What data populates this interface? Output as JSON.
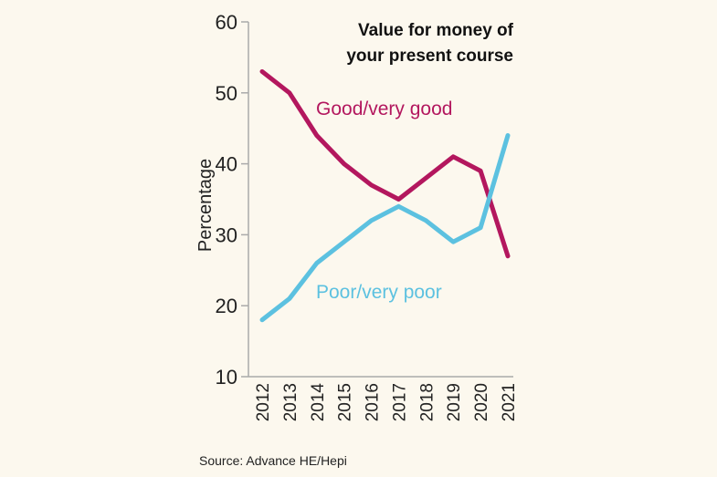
{
  "chart_data": {
    "type": "line",
    "title": [
      "Value for money of",
      "your present course"
    ],
    "ylabel": "Percentage",
    "xlabel": "",
    "ylim": [
      10,
      60
    ],
    "yticks": [
      10,
      20,
      30,
      40,
      50,
      60
    ],
    "x": [
      "2012",
      "2013",
      "2014",
      "2015",
      "2016",
      "2017",
      "2018",
      "2019",
      "2020",
      "2021"
    ],
    "grid": false,
    "series": [
      {
        "name": "Good/very good",
        "color": "#b3175e",
        "values": [
          53,
          50,
          44,
          40,
          37,
          35,
          38,
          41,
          39,
          27
        ]
      },
      {
        "name": "Poor/very poor",
        "color": "#5cc1e0",
        "values": [
          18,
          21,
          26,
          29,
          32,
          34,
          32,
          29,
          31,
          44
        ]
      }
    ],
    "source": "Source: Advance HE/Hepi"
  }
}
